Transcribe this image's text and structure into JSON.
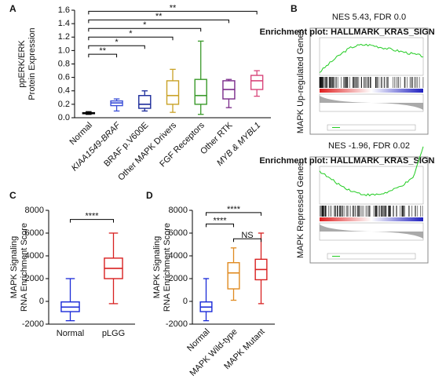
{
  "chart_data": [
    {
      "type": "box",
      "label": "A",
      "ylabel": [
        "ppERK/ERK",
        "Protein Expression"
      ],
      "categories": [
        "Normal",
        "KIAA1549-BRAF",
        "BRAF p.V600E",
        "Other MAPK Drivers",
        "FGF Receptors",
        "Other RTK",
        "MYB & MYBL1"
      ],
      "italic_categories": [
        false,
        true,
        false,
        false,
        false,
        false,
        true
      ],
      "colors": [
        "#000000",
        "#3b4fd8",
        "#1a2a9a",
        "#c9a227",
        "#3a9a2a",
        "#7a2a8a",
        "#d8457a"
      ],
      "boxes": [
        {
          "min": 0.05,
          "q1": 0.06,
          "median": 0.07,
          "q3": 0.075,
          "max": 0.09
        },
        {
          "min": 0.1,
          "q1": 0.18,
          "median": 0.22,
          "q3": 0.25,
          "max": 0.28
        },
        {
          "min": 0.1,
          "q1": 0.14,
          "median": 0.2,
          "q3": 0.33,
          "max": 0.4
        },
        {
          "min": 0.08,
          "q1": 0.2,
          "median": 0.33,
          "q3": 0.55,
          "max": 0.72
        },
        {
          "min": 0.05,
          "q1": 0.2,
          "median": 0.33,
          "q3": 0.57,
          "max": 1.14
        },
        {
          "min": 0.15,
          "q1": 0.28,
          "median": 0.42,
          "q3": 0.55,
          "max": 0.57
        },
        {
          "min": 0.32,
          "q1": 0.42,
          "median": 0.55,
          "q3": 0.63,
          "max": 0.7
        }
      ],
      "significance": [
        "**",
        "*",
        "*",
        "*",
        "**",
        "**"
      ],
      "ylim": [
        0,
        1.6
      ],
      "yticks": [
        {
          "value": 0,
          "label": "0.0"
        },
        0.2,
        0.4,
        0.6,
        0.8,
        {
          "value": 1,
          "label": "1.0"
        },
        1.2,
        1.4,
        1.6
      ]
    },
    {
      "type": "box",
      "label": "C",
      "ylabel": [
        "MAPK Signaling",
        "RNA Enrichment Score"
      ],
      "categories": [
        "Normal",
        "pLGG"
      ],
      "colors": [
        "#1a2ad8",
        "#d82020"
      ],
      "boxes": [
        {
          "min": -1700,
          "q1": -900,
          "median": -500,
          "q3": -50,
          "max": 2000
        },
        {
          "min": -200,
          "q1": 2000,
          "median": 2900,
          "q3": 3800,
          "max": 6000
        }
      ],
      "significance": [
        "****"
      ],
      "ylim": [
        -2000,
        8000
      ],
      "yticks": [
        -2000,
        0,
        2000,
        4000,
        6000,
        8000
      ]
    },
    {
      "type": "box",
      "label": "D",
      "ylabel": [
        "MAPK Signaling",
        "RNA Enrichment Score"
      ],
      "categories": [
        "Normal",
        "MAPK Wild-type",
        "MAPK Mutant"
      ],
      "colors": [
        "#1a2ad8",
        "#e08a20",
        "#d82020"
      ],
      "boxes": [
        {
          "min": -1700,
          "q1": -900,
          "median": -500,
          "q3": -50,
          "max": 2000
        },
        {
          "min": 100,
          "q1": 1100,
          "median": 2500,
          "q3": 3400,
          "max": 4700
        },
        {
          "min": -200,
          "q1": 1900,
          "median": 2800,
          "q3": 3700,
          "max": 6000
        }
      ],
      "significance": [
        "****",
        "****",
        "NS"
      ],
      "ylim": [
        -2000,
        8000
      ],
      "yticks": [
        -2000,
        0,
        2000,
        4000,
        6000,
        8000
      ]
    }
  ],
  "panel_b": {
    "label": "B",
    "plots": [
      {
        "title": "NES 5.43, FDR 0.0",
        "ylabel": "MAPK Up-regulated Genes",
        "plot_title": "Enrichment plot: HALLMARK_KRAS_SIGNALING_UP"
      },
      {
        "title": "NES -1.96, FDR 0.02",
        "ylabel": "MAPK Repressed Genes",
        "plot_title": "Enrichment plot: HALLMARK_KRAS_SIGNALING_DN"
      }
    ]
  }
}
